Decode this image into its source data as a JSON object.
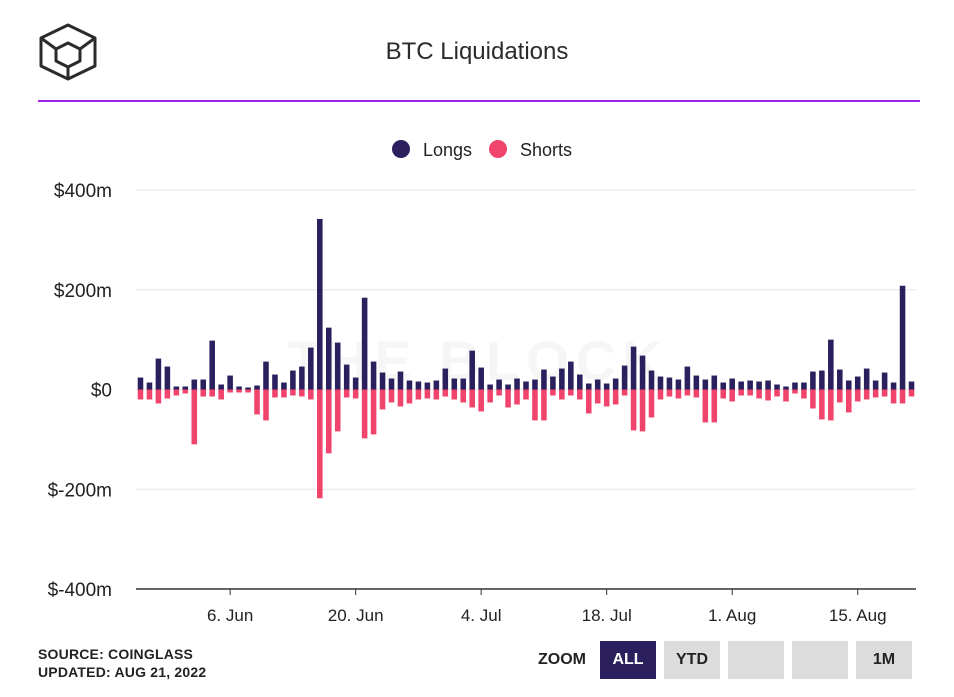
{
  "chart_data": {
    "type": "bar",
    "title": "BTC Liquidations",
    "legend": {
      "position": "top-center"
    },
    "watermark": "THE BLOCK",
    "y_ticks": [
      "$400m",
      "$200m",
      "$0",
      "$-200m",
      "$-400m"
    ],
    "y_tick_values": [
      400,
      200,
      0,
      -200,
      -400
    ],
    "ylim": [
      -400,
      400
    ],
    "x_ticks": [
      "6. Jun",
      "20. Jun",
      "4. Jul",
      "18. Jul",
      "1. Aug",
      "15. Aug"
    ],
    "x_tick_index": [
      10,
      24,
      38,
      52,
      66,
      80
    ],
    "start_date": "2022-05-27",
    "series": [
      {
        "name": "Longs",
        "color": "#2c1f5e",
        "values": [
          24,
          14,
          62,
          46,
          6,
          6,
          20,
          20,
          98,
          10,
          28,
          6,
          4,
          8,
          56,
          30,
          14,
          38,
          46,
          84,
          342,
          124,
          94,
          50,
          24,
          184,
          56,
          34,
          22,
          36,
          18,
          16,
          14,
          18,
          42,
          22,
          22,
          78,
          44,
          10,
          20,
          10,
          22,
          16,
          20,
          40,
          26,
          42,
          56,
          30,
          12,
          20,
          12,
          22,
          48,
          86,
          68,
          38,
          26,
          24,
          20,
          46,
          28,
          20,
          28,
          14,
          22,
          16,
          18,
          16,
          18,
          10,
          6,
          14,
          14,
          36,
          38,
          100,
          40,
          18,
          26,
          42,
          18,
          34,
          14,
          208,
          16
        ]
      },
      {
        "name": "Shorts",
        "color": "#f0446c",
        "values": [
          -20,
          -20,
          -28,
          -18,
          -12,
          -8,
          -110,
          -14,
          -14,
          -20,
          -6,
          -6,
          -6,
          -50,
          -62,
          -16,
          -16,
          -12,
          -14,
          -20,
          -218,
          -128,
          -84,
          -16,
          -18,
          -98,
          -90,
          -40,
          -26,
          -34,
          -28,
          -20,
          -18,
          -20,
          -14,
          -20,
          -26,
          -36,
          -44,
          -26,
          -12,
          -36,
          -30,
          -20,
          -62,
          -62,
          -12,
          -20,
          -12,
          -20,
          -48,
          -28,
          -34,
          -30,
          -12,
          -82,
          -84,
          -56,
          -20,
          -14,
          -18,
          -12,
          -16,
          -66,
          -66,
          -18,
          -24,
          -12,
          -12,
          -18,
          -22,
          -14,
          -24,
          -8,
          -18,
          -38,
          -60,
          -62,
          -26,
          -46,
          -24,
          -20,
          -16,
          -14,
          -28,
          -28,
          -14
        ]
      }
    ]
  },
  "footer": {
    "source": "SOURCE: COINGLASS",
    "updated": "UPDATED: AUG 21, 2022"
  },
  "zoom": {
    "label": "ZOOM",
    "buttons": [
      "ALL",
      "YTD",
      "",
      "",
      "1M"
    ],
    "selected": "ALL"
  }
}
